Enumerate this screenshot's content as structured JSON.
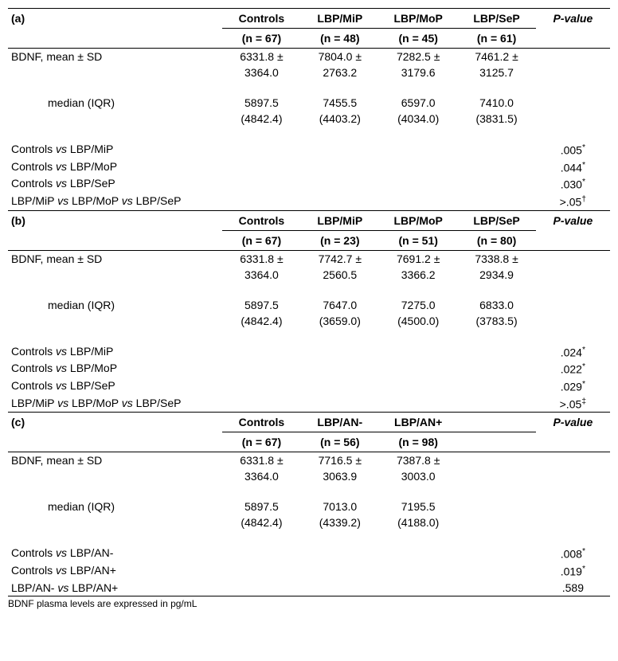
{
  "sections": [
    {
      "label": "(a)",
      "cols": [
        {
          "h1": "Controls",
          "h2": "(n = 67)"
        },
        {
          "h1": "LBP/MiP",
          "h2": "(n = 48)"
        },
        {
          "h1": "LBP/MoP",
          "h2": "(n = 45)"
        },
        {
          "h1": "LBP/SeP",
          "h2": "(n = 61)"
        }
      ],
      "pvalHeader": "P-value",
      "meanLabel": "BDNF, mean ± SD",
      "mean1": [
        "6331.8 ±",
        "7804.0 ±",
        "7282.5 ±",
        "7461.2 ±"
      ],
      "mean2": [
        "3364.0",
        "2763.2",
        "3179.6",
        "3125.7"
      ],
      "medianLabel": "median (IQR)",
      "med1": [
        "5897.5",
        "7455.5",
        "6597.0",
        "7410.0"
      ],
      "med2": [
        "(4842.4)",
        "(4403.2)",
        "(4034.0)",
        "(3831.5)"
      ],
      "rows": [
        {
          "label": "Controls vs LBP/MiP",
          "p": ".005",
          "sup": "*"
        },
        {
          "label": "Controls vs LBP/MoP",
          "p": ".044",
          "sup": "*"
        },
        {
          "label": "Controls vs LBP/SeP",
          "p": ".030",
          "sup": "*"
        },
        {
          "label": "LBP/MiP vs LBP/MoP vs LBP/SeP",
          "p": ">.05",
          "sup": "†"
        }
      ]
    },
    {
      "label": "(b)",
      "cols": [
        {
          "h1": "Controls",
          "h2": "(n = 67)"
        },
        {
          "h1": "LBP/MiP",
          "h2": "(n = 23)"
        },
        {
          "h1": "LBP/MoP",
          "h2": "(n = 51)"
        },
        {
          "h1": "LBP/SeP",
          "h2": "(n = 80)"
        }
      ],
      "pvalHeader": "P-value",
      "meanLabel": "BDNF, mean ± SD",
      "mean1": [
        "6331.8 ±",
        "7742.7 ±",
        "7691.2 ±",
        "7338.8 ±"
      ],
      "mean2": [
        "3364.0",
        "2560.5",
        "3366.2",
        "2934.9"
      ],
      "medianLabel": "median (IQR)",
      "med1": [
        "5897.5",
        "7647.0",
        "7275.0",
        "6833.0"
      ],
      "med2": [
        "(4842.4)",
        "(3659.0)",
        "(4500.0)",
        "(3783.5)"
      ],
      "rows": [
        {
          "label": "Controls vs LBP/MiP",
          "p": ".024",
          "sup": "*"
        },
        {
          "label": "Controls vs LBP/MoP",
          "p": ".022",
          "sup": "*"
        },
        {
          "label": "Controls vs LBP/SeP",
          "p": ".029",
          "sup": "*"
        },
        {
          "label": "LBP/MiP vs LBP/MoP vs LBP/SeP",
          "p": ">.05",
          "sup": "‡"
        }
      ]
    },
    {
      "label": "(c)",
      "cols": [
        {
          "h1": "Controls",
          "h2": "(n = 67)"
        },
        {
          "h1": "LBP/AN-",
          "h2": "(n = 56)"
        },
        {
          "h1": "LBP/AN+",
          "h2": "(n = 98)"
        },
        {
          "h1": "",
          "h2": ""
        }
      ],
      "pvalHeader": "P-value",
      "meanLabel": "BDNF, mean ± SD",
      "mean1": [
        "6331.8 ±",
        "7716.5 ±",
        "7387.8 ±",
        ""
      ],
      "mean2": [
        "3364.0",
        "3063.9",
        "3003.0",
        ""
      ],
      "medianLabel": "median (IQR)",
      "med1": [
        "5897.5",
        "7013.0",
        "7195.5",
        ""
      ],
      "med2": [
        "(4842.4)",
        "(4339.2)",
        "(4188.0)",
        ""
      ],
      "rows": [
        {
          "label": "Controls vs LBP/AN-",
          "p": ".008",
          "sup": "*"
        },
        {
          "label": "Controls vs LBP/AN+",
          "p": ".019",
          "sup": "*"
        },
        {
          "label": "LBP/AN- vs LBP/AN+",
          "p": ".589",
          "sup": ""
        }
      ]
    }
  ],
  "footnote": "BDNF plasma levels are expressed in pg/mL"
}
